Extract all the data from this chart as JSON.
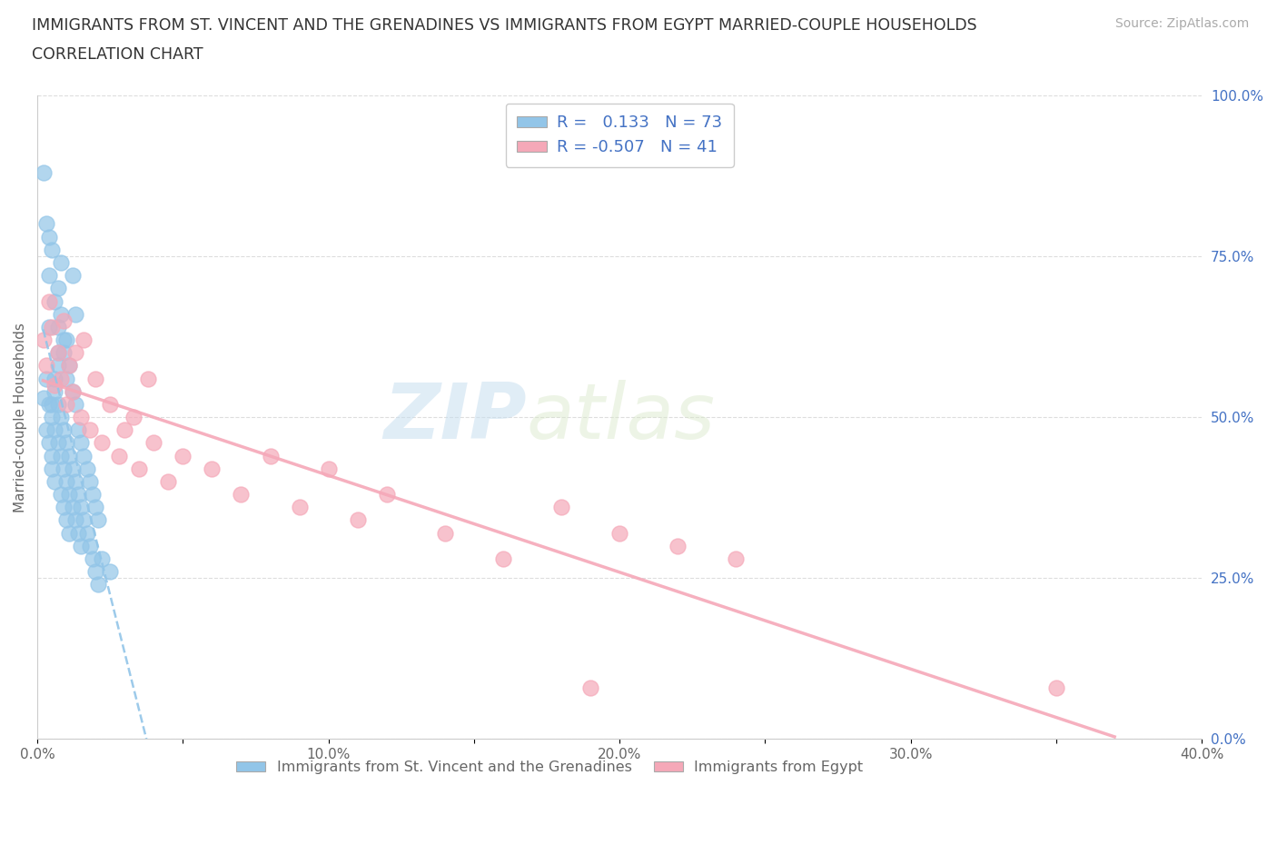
{
  "title_line1": "IMMIGRANTS FROM ST. VINCENT AND THE GRENADINES VS IMMIGRANTS FROM EGYPT MARRIED-COUPLE HOUSEHOLDS",
  "title_line2": "CORRELATION CHART",
  "source": "Source: ZipAtlas.com",
  "ylabel": "Married-couple Households",
  "xlim": [
    0.0,
    0.4
  ],
  "ylim": [
    0.0,
    1.0
  ],
  "xtick_positions": [
    0.0,
    0.05,
    0.1,
    0.15,
    0.2,
    0.25,
    0.3,
    0.35,
    0.4
  ],
  "xtick_labels": [
    "0.0%",
    "",
    "10.0%",
    "",
    "20.0%",
    "",
    "30.0%",
    "",
    "40.0%"
  ],
  "ytick_positions": [
    0.0,
    0.25,
    0.5,
    0.75,
    1.0
  ],
  "ytick_labels": [
    "0.0%",
    "25.0%",
    "50.0%",
    "75.0%",
    "100.0%"
  ],
  "series1_color": "#92C5E8",
  "series2_color": "#F5A8B8",
  "series1_label": "Immigrants from St. Vincent and the Grenadines",
  "series2_label": "Immigrants from Egypt",
  "R1": 0.133,
  "N1": 73,
  "R2": -0.507,
  "N2": 41,
  "background_color": "#ffffff",
  "watermark_zip": "ZIP",
  "watermark_atlas": "atlas",
  "text_color": "#4472C4",
  "axis_color": "#666666",
  "grid_color": "#dddddd",
  "series1_x": [
    0.002,
    0.003,
    0.003,
    0.004,
    0.004,
    0.005,
    0.005,
    0.005,
    0.006,
    0.006,
    0.006,
    0.007,
    0.007,
    0.007,
    0.008,
    0.008,
    0.008,
    0.009,
    0.009,
    0.009,
    0.01,
    0.01,
    0.01,
    0.011,
    0.011,
    0.011,
    0.012,
    0.012,
    0.013,
    0.013,
    0.014,
    0.014,
    0.015,
    0.015,
    0.016,
    0.017,
    0.018,
    0.019,
    0.02,
    0.021,
    0.002,
    0.003,
    0.004,
    0.004,
    0.005,
    0.006,
    0.007,
    0.007,
    0.008,
    0.009,
    0.01,
    0.01,
    0.011,
    0.012,
    0.013,
    0.014,
    0.015,
    0.016,
    0.017,
    0.018,
    0.019,
    0.02,
    0.021,
    0.012,
    0.013,
    0.008,
    0.009,
    0.007,
    0.006,
    0.005,
    0.004,
    0.022,
    0.025
  ],
  "series1_y": [
    0.53,
    0.56,
    0.48,
    0.52,
    0.46,
    0.5,
    0.44,
    0.42,
    0.54,
    0.48,
    0.4,
    0.52,
    0.46,
    0.58,
    0.5,
    0.44,
    0.38,
    0.48,
    0.42,
    0.36,
    0.46,
    0.4,
    0.34,
    0.44,
    0.38,
    0.32,
    0.42,
    0.36,
    0.4,
    0.34,
    0.38,
    0.32,
    0.36,
    0.3,
    0.34,
    0.32,
    0.3,
    0.28,
    0.26,
    0.24,
    0.88,
    0.8,
    0.78,
    0.72,
    0.76,
    0.68,
    0.7,
    0.64,
    0.66,
    0.6,
    0.62,
    0.56,
    0.58,
    0.54,
    0.52,
    0.48,
    0.46,
    0.44,
    0.42,
    0.4,
    0.38,
    0.36,
    0.34,
    0.72,
    0.66,
    0.74,
    0.62,
    0.6,
    0.56,
    0.52,
    0.64,
    0.28,
    0.26
  ],
  "series2_x": [
    0.002,
    0.003,
    0.004,
    0.005,
    0.006,
    0.007,
    0.008,
    0.009,
    0.01,
    0.011,
    0.012,
    0.013,
    0.015,
    0.016,
    0.018,
    0.02,
    0.022,
    0.025,
    0.028,
    0.03,
    0.033,
    0.035,
    0.038,
    0.04,
    0.045,
    0.05,
    0.06,
    0.07,
    0.08,
    0.09,
    0.1,
    0.11,
    0.12,
    0.14,
    0.16,
    0.18,
    0.2,
    0.22,
    0.24,
    0.35,
    0.19
  ],
  "series2_y": [
    0.62,
    0.58,
    0.68,
    0.64,
    0.55,
    0.6,
    0.56,
    0.65,
    0.52,
    0.58,
    0.54,
    0.6,
    0.5,
    0.62,
    0.48,
    0.56,
    0.46,
    0.52,
    0.44,
    0.48,
    0.5,
    0.42,
    0.56,
    0.46,
    0.4,
    0.44,
    0.42,
    0.38,
    0.44,
    0.36,
    0.42,
    0.34,
    0.38,
    0.32,
    0.28,
    0.36,
    0.32,
    0.3,
    0.28,
    0.08,
    0.08
  ]
}
